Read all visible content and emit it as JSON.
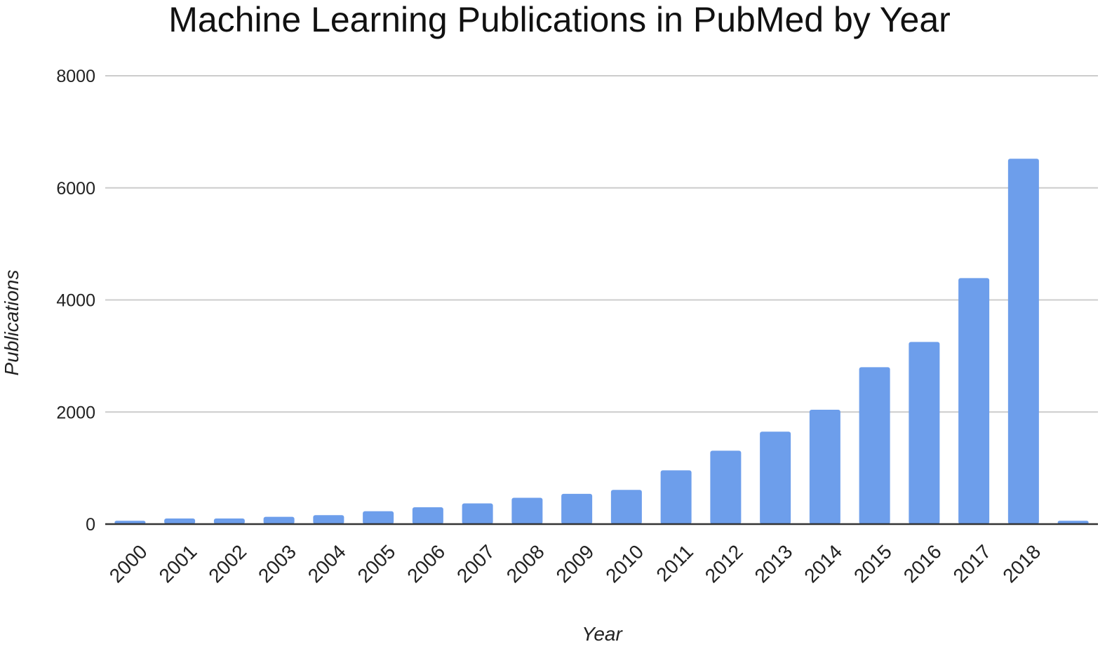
{
  "chart_data": {
    "type": "bar",
    "title": "Machine Learning Publications in PubMed by Year",
    "xlabel": "Year",
    "ylabel": "Publications",
    "ylim": [
      0,
      8000
    ],
    "yticks": [
      0,
      2000,
      4000,
      6000,
      8000
    ],
    "grid": true,
    "legend": "none",
    "bar_color": "#6d9eeb",
    "categories": [
      "2000",
      "2001",
      "2002",
      "2003",
      "2004",
      "2005",
      "2006",
      "2007",
      "2008",
      "2009",
      "2010",
      "2011",
      "2012",
      "2013",
      "2014",
      "2015",
      "2016",
      "2017",
      "2018",
      ""
    ],
    "values": [
      60,
      100,
      100,
      130,
      160,
      230,
      300,
      370,
      470,
      540,
      610,
      960,
      1310,
      1650,
      2040,
      2800,
      3250,
      4390,
      6520,
      60
    ]
  }
}
